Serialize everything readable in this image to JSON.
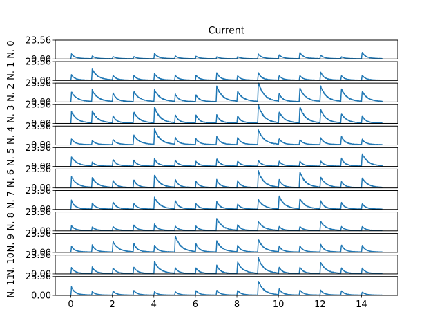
{
  "chart_data": {
    "type": "line",
    "title": "Current",
    "xlim": [
      -0.75,
      15.75
    ],
    "ylim": [
      0,
      23.56
    ],
    "y_tick_labels": [
      "0.00",
      "23.56"
    ],
    "x_ticks": [
      0,
      2,
      4,
      6,
      8,
      10,
      12,
      14
    ],
    "x_tick_labels": [
      "0",
      "2",
      "4",
      "6",
      "8",
      "10",
      "12",
      "14"
    ],
    "line_color": "#1f77b4",
    "grid": false,
    "series": [
      {
        "ylabel": "N. 0",
        "peaks": [
          [
            0,
            5.4
          ],
          [
            1,
            3.1
          ],
          [
            2,
            2.7
          ],
          [
            3,
            2.6
          ],
          [
            4,
            6.2
          ],
          [
            5,
            3.3
          ],
          [
            6,
            2.9
          ],
          [
            7,
            2.3
          ],
          [
            8,
            2.6
          ],
          [
            9,
            5.5
          ],
          [
            10,
            4.6
          ],
          [
            11,
            7.2
          ],
          [
            12,
            4.3
          ],
          [
            13,
            2.4
          ],
          [
            14,
            7.4
          ]
        ]
      },
      {
        "ylabel": "N. 1",
        "peaks": [
          [
            0,
            6.0
          ],
          [
            1,
            12.2
          ],
          [
            2,
            5.5
          ],
          [
            3,
            5.6
          ],
          [
            4,
            7.7
          ],
          [
            5,
            5.6
          ],
          [
            6,
            5.5
          ],
          [
            7,
            8.5
          ],
          [
            8,
            5.2
          ],
          [
            9,
            8.4
          ],
          [
            10,
            5.2
          ],
          [
            11,
            5.3
          ],
          [
            12,
            9.1
          ],
          [
            13,
            5.2
          ],
          [
            14,
            5.8
          ]
        ]
      },
      {
        "ylabel": "N. 2",
        "peaks": [
          [
            0,
            10.6
          ],
          [
            1,
            12.8
          ],
          [
            2,
            10.0
          ],
          [
            3,
            11.3
          ],
          [
            4,
            13.2
          ],
          [
            5,
            8.6
          ],
          [
            6,
            7.6
          ],
          [
            7,
            16.6
          ],
          [
            8,
            11.5
          ],
          [
            9,
            21.5
          ],
          [
            10,
            9.5
          ],
          [
            11,
            15.0
          ],
          [
            12,
            17.0
          ],
          [
            13,
            14.0
          ],
          [
            14,
            11.4
          ]
        ]
      },
      {
        "ylabel": "N. 3",
        "peaks": [
          [
            0,
            12.5
          ],
          [
            1,
            13.5
          ],
          [
            2,
            8.4
          ],
          [
            3,
            12.4
          ],
          [
            4,
            17.5
          ],
          [
            5,
            9.5
          ],
          [
            6,
            9.2
          ],
          [
            7,
            9.2
          ],
          [
            8,
            8.4
          ],
          [
            9,
            20.0
          ],
          [
            10,
            12.6
          ],
          [
            11,
            18.0
          ],
          [
            12,
            15.0
          ],
          [
            13,
            10.5
          ],
          [
            14,
            8.5
          ]
        ]
      },
      {
        "ylabel": "N. 4",
        "peaks": [
          [
            0,
            6.5
          ],
          [
            1,
            4.8
          ],
          [
            2,
            6.2
          ],
          [
            3,
            10.6
          ],
          [
            4,
            17.0
          ],
          [
            5,
            8.1
          ],
          [
            6,
            6.6
          ],
          [
            7,
            9.0
          ],
          [
            8,
            8.5
          ],
          [
            9,
            16.4
          ],
          [
            10,
            7.0
          ],
          [
            11,
            5.8
          ],
          [
            12,
            7.9
          ],
          [
            13,
            9.5
          ],
          [
            14,
            6.2
          ]
        ]
      },
      {
        "ylabel": "N. 5",
        "peaks": [
          [
            0,
            10.1
          ],
          [
            1,
            4.7
          ],
          [
            2,
            7.6
          ],
          [
            3,
            6.8
          ],
          [
            4,
            8.4
          ],
          [
            5,
            6.6
          ],
          [
            6,
            5.4
          ],
          [
            7,
            8.0
          ],
          [
            8,
            5.9
          ],
          [
            9,
            6.5
          ],
          [
            10,
            5.7
          ],
          [
            11,
            5.6
          ],
          [
            12,
            5.9
          ],
          [
            13,
            9.0
          ],
          [
            14,
            13.7
          ]
        ]
      },
      {
        "ylabel": "N. 6",
        "peaks": [
          [
            0,
            11.8
          ],
          [
            1,
            10.9
          ],
          [
            2,
            8.1
          ],
          [
            3,
            9.0
          ],
          [
            4,
            13.9
          ],
          [
            5,
            9.2
          ],
          [
            6,
            7.0
          ],
          [
            7,
            8.8
          ],
          [
            8,
            7.9
          ],
          [
            9,
            18.1
          ],
          [
            10,
            9.0
          ],
          [
            11,
            17.2
          ],
          [
            12,
            11.5
          ],
          [
            13,
            7.0
          ],
          [
            14,
            10.7
          ]
        ]
      },
      {
        "ylabel": "N. 7",
        "peaks": [
          [
            0,
            9.4
          ],
          [
            1,
            7.0
          ],
          [
            2,
            8.1
          ],
          [
            3,
            6.5
          ],
          [
            4,
            12.8
          ],
          [
            5,
            9.6
          ],
          [
            6,
            6.0
          ],
          [
            7,
            8.3
          ],
          [
            8,
            5.9
          ],
          [
            9,
            10.4
          ],
          [
            10,
            14.3
          ],
          [
            11,
            11.7
          ],
          [
            12,
            9.4
          ],
          [
            13,
            7.5
          ],
          [
            14,
            6.5
          ]
        ]
      },
      {
        "ylabel": "N. 8",
        "peaks": [
          [
            0,
            5.5
          ],
          [
            1,
            4.3
          ],
          [
            2,
            4.7
          ],
          [
            3,
            6.6
          ],
          [
            4,
            6.9
          ],
          [
            5,
            5.2
          ],
          [
            6,
            4.9
          ],
          [
            7,
            13.6
          ],
          [
            8,
            6.7
          ],
          [
            9,
            10.2
          ],
          [
            10,
            4.8
          ],
          [
            11,
            4.9
          ],
          [
            12,
            10.1
          ],
          [
            13,
            4.8
          ],
          [
            14,
            4.9
          ]
        ]
      },
      {
        "ylabel": "N. 9",
        "peaks": [
          [
            0,
            6.5
          ],
          [
            1,
            7.6
          ],
          [
            2,
            11.4
          ],
          [
            3,
            9.8
          ],
          [
            4,
            7.6
          ],
          [
            5,
            17.6
          ],
          [
            6,
            9.2
          ],
          [
            7,
            11.8
          ],
          [
            8,
            7.9
          ],
          [
            9,
            13.8
          ],
          [
            10,
            6.8
          ],
          [
            11,
            7.0
          ],
          [
            12,
            8.8
          ],
          [
            13,
            8.2
          ],
          [
            14,
            7.4
          ]
        ]
      },
      {
        "ylabel": "N. 10",
        "peaks": [
          [
            0,
            6.8
          ],
          [
            1,
            7.4
          ],
          [
            2,
            6.5
          ],
          [
            3,
            7.6
          ],
          [
            4,
            12.8
          ],
          [
            5,
            6.4
          ],
          [
            6,
            6.2
          ],
          [
            7,
            9.3
          ],
          [
            8,
            12.6
          ],
          [
            9,
            17.3
          ],
          [
            10,
            7.2
          ],
          [
            11,
            7.4
          ],
          [
            12,
            12.5
          ],
          [
            13,
            6.4
          ],
          [
            14,
            6.4
          ]
        ]
      },
      {
        "ylabel": "N. 11",
        "peaks": [
          [
            0,
            9.0
          ],
          [
            1,
            4.0
          ],
          [
            2,
            4.6
          ],
          [
            3,
            5.3
          ],
          [
            4,
            3.7
          ],
          [
            5,
            3.9
          ],
          [
            6,
            5.1
          ],
          [
            7,
            5.3
          ],
          [
            8,
            5.5
          ],
          [
            9,
            15.3
          ],
          [
            10,
            7.0
          ],
          [
            11,
            6.1
          ],
          [
            12,
            5.7
          ],
          [
            13,
            5.1
          ],
          [
            14,
            3.7
          ]
        ]
      }
    ]
  }
}
